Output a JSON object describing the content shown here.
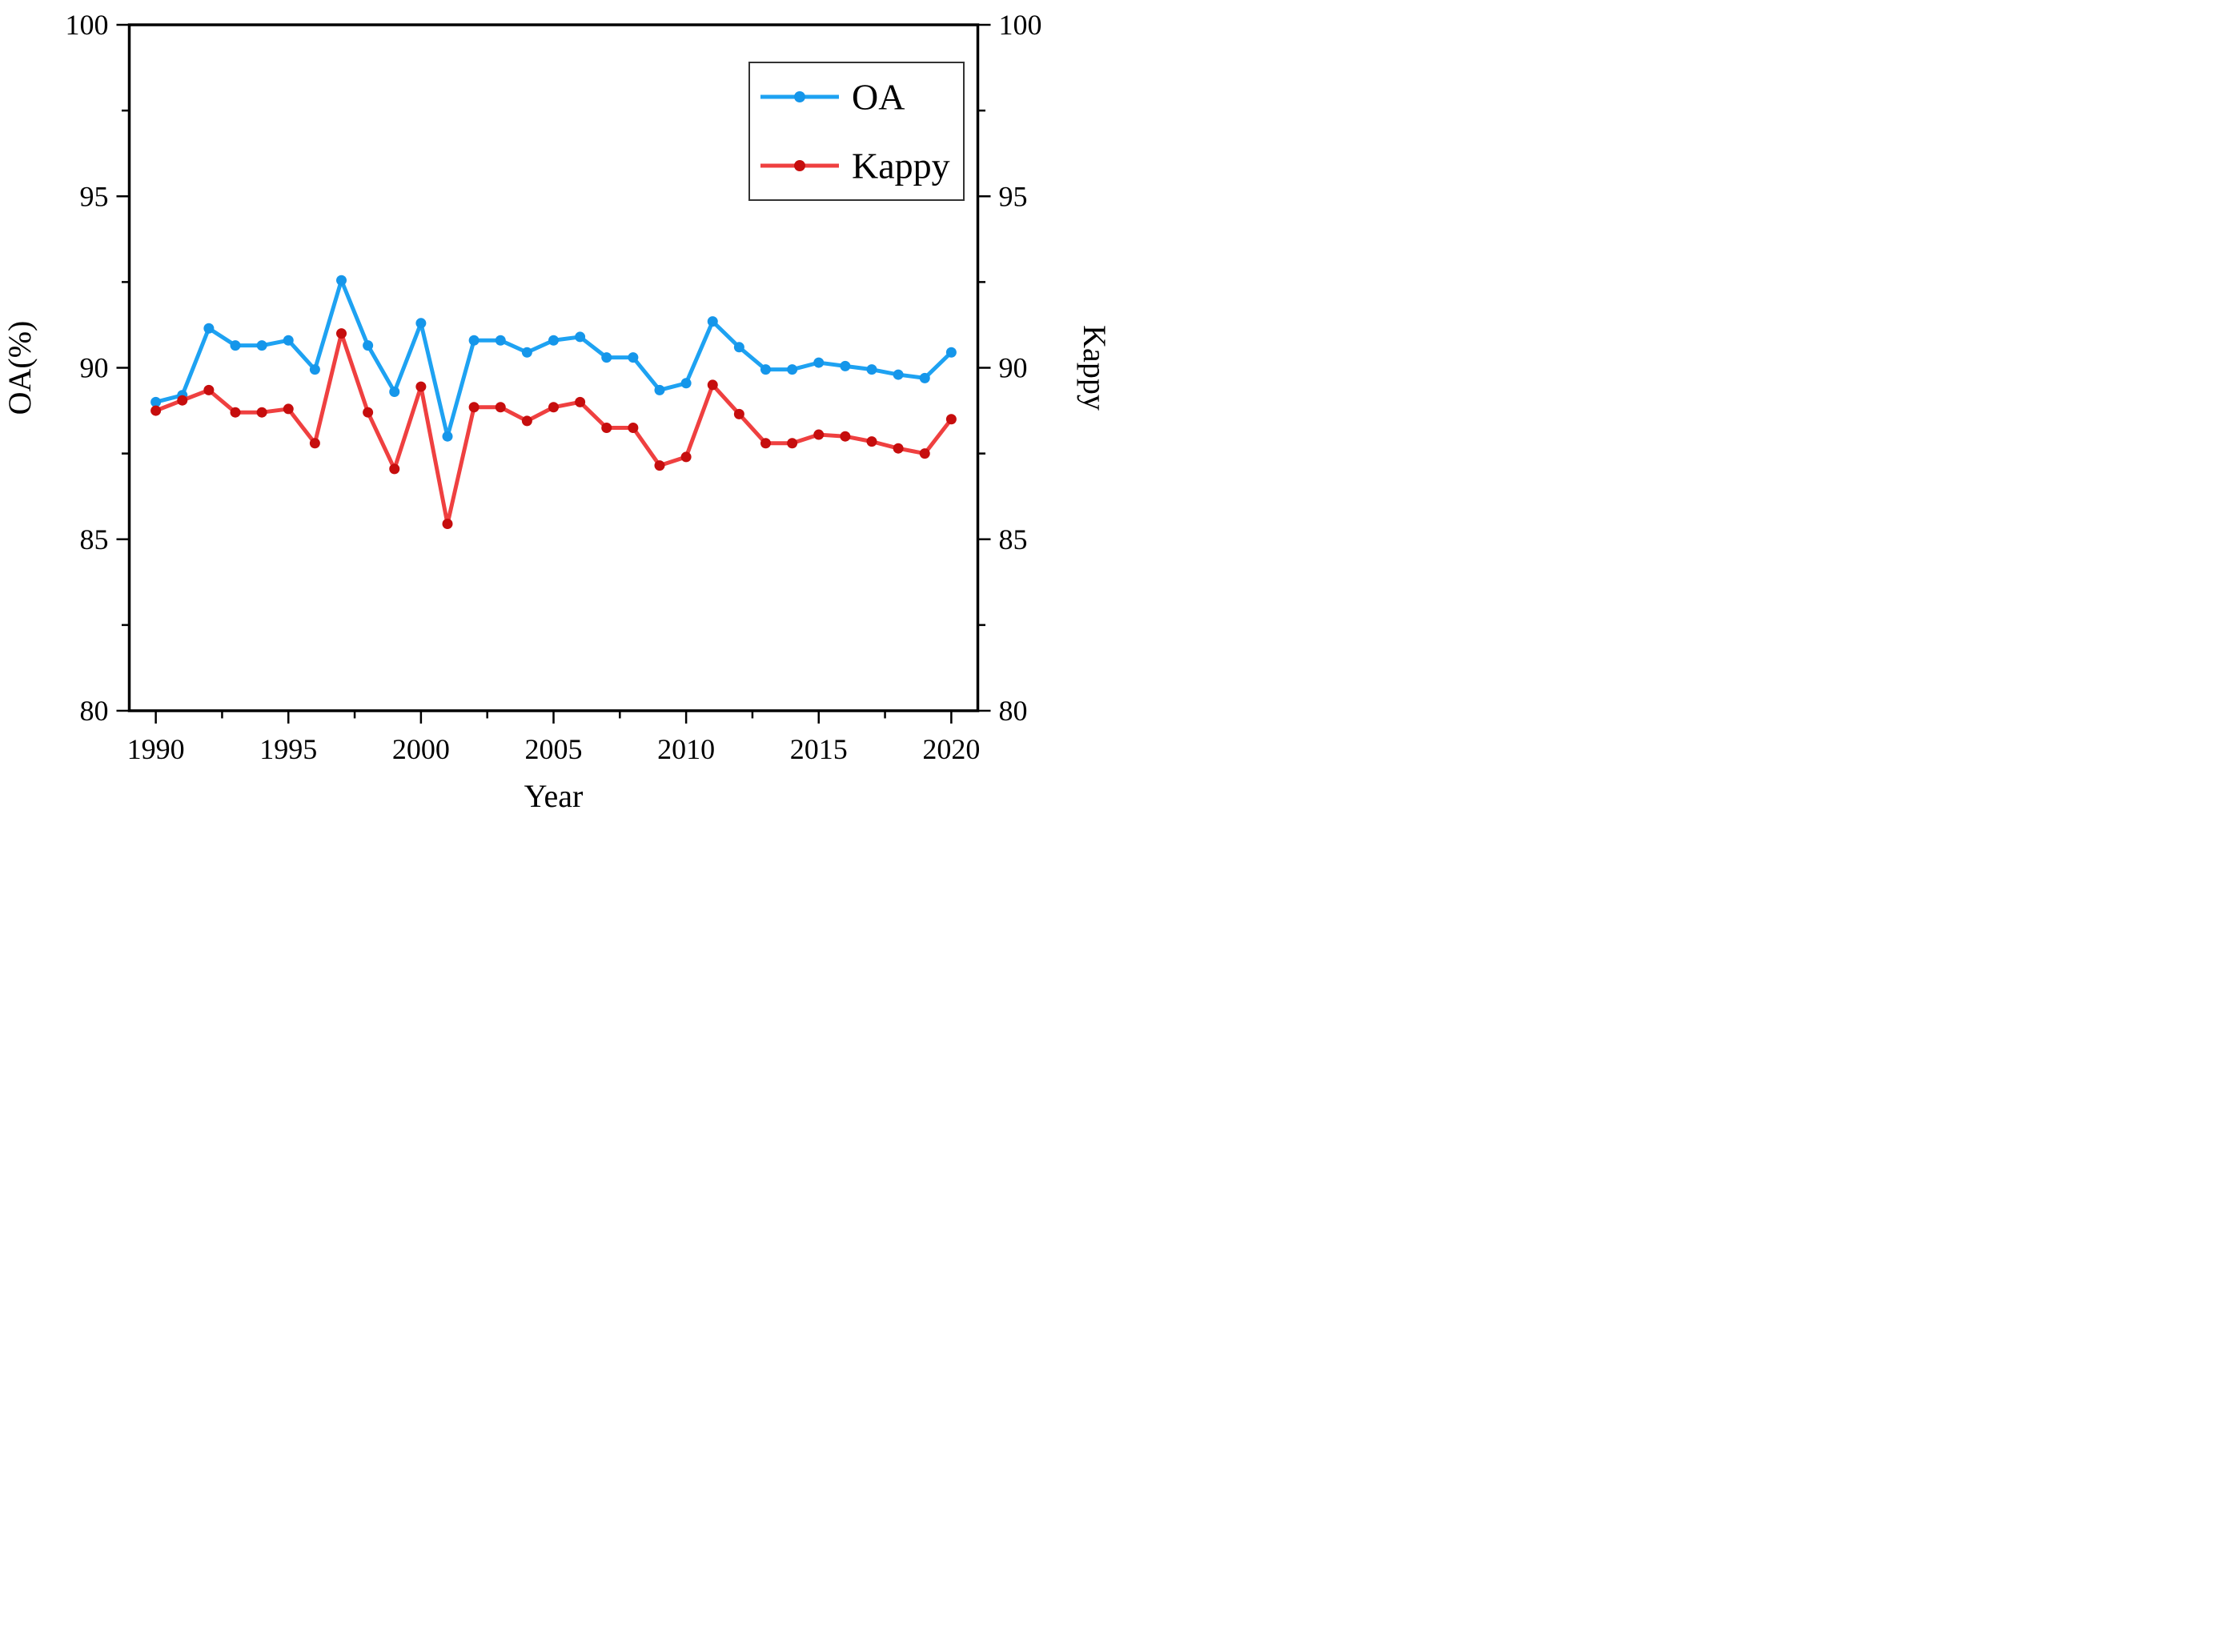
{
  "figure": {
    "background": "#ffffff",
    "axis_color": "#000000"
  },
  "legend": {
    "position": "top-right",
    "entries": [
      {
        "label": "OA",
        "line_color": "#1ea2f2",
        "marker_color": "#1596ea"
      },
      {
        "label": "Kappy",
        "line_color": "#ef4040",
        "marker_color": "#c60d0d"
      }
    ]
  },
  "chart_data": {
    "type": "line",
    "title": "",
    "xlabel": "Year",
    "ylabel_left": "OA(%)",
    "ylabel_right": "Kappy",
    "grid": false,
    "xlim": [
      1989,
      2021
    ],
    "ylim_left": [
      80,
      100
    ],
    "ylim_right": [
      80,
      100
    ],
    "x_major_ticks": [
      1990,
      1995,
      2000,
      2005,
      2010,
      2015,
      2020
    ],
    "x_minor_ticks": [
      1992.5,
      1997.5,
      2002.5,
      2007.5,
      2012.5,
      2017.5
    ],
    "y_major_ticks": [
      80,
      85,
      90,
      95,
      100
    ],
    "y_minor_ticks": [
      82.5,
      87.5,
      92.5,
      97.5
    ],
    "x": [
      1990,
      1991,
      1992,
      1993,
      1994,
      1995,
      1996,
      1997,
      1998,
      1999,
      2000,
      2001,
      2002,
      2003,
      2004,
      2005,
      2006,
      2007,
      2008,
      2009,
      2010,
      2011,
      2012,
      2013,
      2014,
      2015,
      2016,
      2017,
      2018,
      2019,
      2020
    ],
    "series": [
      {
        "name": "OA",
        "axis": "left",
        "line_color": "#1ea2f2",
        "marker_color": "#1596ea",
        "values": [
          89.0,
          89.2,
          91.15,
          90.65,
          90.65,
          90.8,
          89.95,
          92.55,
          90.65,
          89.3,
          91.3,
          88.0,
          90.8,
          90.8,
          90.45,
          90.8,
          90.9,
          90.3,
          90.3,
          89.35,
          89.55,
          91.35,
          90.6,
          89.95,
          89.95,
          90.15,
          90.05,
          89.95,
          89.8,
          89.7,
          90.45
        ]
      },
      {
        "name": "Kappy",
        "axis": "right",
        "line_color": "#ef4040",
        "marker_color": "#c60d0d",
        "values": [
          88.75,
          89.05,
          89.35,
          88.7,
          88.7,
          88.8,
          87.8,
          91.0,
          88.7,
          87.05,
          89.45,
          85.45,
          88.85,
          88.85,
          88.45,
          88.85,
          89.0,
          88.25,
          88.25,
          87.15,
          87.4,
          89.5,
          88.65,
          87.8,
          87.8,
          88.05,
          88.0,
          87.85,
          87.65,
          87.5,
          88.5
        ]
      }
    ]
  }
}
